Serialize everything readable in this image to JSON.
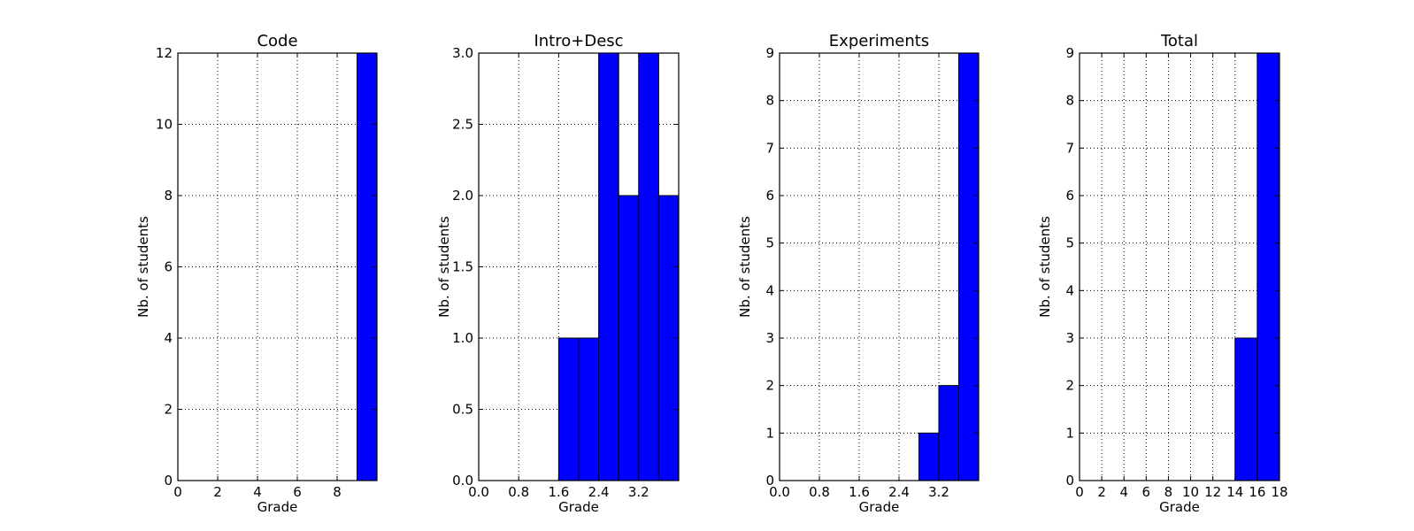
{
  "chart_data": [
    {
      "type": "bar",
      "title": "Code",
      "xlabel": "Grade",
      "ylabel": "Nb. of students",
      "xlim": [
        0,
        10
      ],
      "ylim": [
        0,
        12
      ],
      "xticks": [
        "0",
        "2",
        "4",
        "6",
        "8"
      ],
      "xtick_values": [
        0,
        2,
        4,
        6,
        8
      ],
      "yticks": [
        "0",
        "2",
        "4",
        "6",
        "8",
        "10",
        "12"
      ],
      "ytick_values": [
        0,
        2,
        4,
        6,
        8,
        10,
        12
      ],
      "grid": true,
      "bar_color": "#0000ff",
      "bins": [
        [
          9,
          10
        ]
      ],
      "values": [
        12
      ]
    },
    {
      "type": "bar",
      "title": "Intro+Desc",
      "xlabel": "Grade",
      "ylabel": "Nb. of students",
      "xlim": [
        0,
        4
      ],
      "ylim": [
        0,
        3
      ],
      "xticks": [
        "0.0",
        "0.8",
        "1.6",
        "2.4",
        "3.2"
      ],
      "xtick_values": [
        0,
        0.8,
        1.6,
        2.4,
        3.2
      ],
      "yticks": [
        "0.0",
        "0.5",
        "1.0",
        "1.5",
        "2.0",
        "2.5",
        "3.0"
      ],
      "ytick_values": [
        0,
        0.5,
        1,
        1.5,
        2,
        2.5,
        3
      ],
      "grid": true,
      "bar_color": "#0000ff",
      "bins": [
        [
          1.6,
          2.0
        ],
        [
          2.0,
          2.4
        ],
        [
          2.4,
          2.8
        ],
        [
          2.8,
          3.2
        ],
        [
          3.2,
          3.6
        ],
        [
          3.6,
          4.0
        ]
      ],
      "values": [
        1,
        1,
        3,
        2,
        3,
        2
      ]
    },
    {
      "type": "bar",
      "title": "Experiments",
      "xlabel": "Grade",
      "ylabel": "Nb. of students",
      "xlim": [
        0,
        4
      ],
      "ylim": [
        0,
        9
      ],
      "xticks": [
        "0.0",
        "0.8",
        "1.6",
        "2.4",
        "3.2"
      ],
      "xtick_values": [
        0,
        0.8,
        1.6,
        2.4,
        3.2
      ],
      "yticks": [
        "0",
        "1",
        "2",
        "3",
        "4",
        "5",
        "6",
        "7",
        "8",
        "9"
      ],
      "ytick_values": [
        0,
        1,
        2,
        3,
        4,
        5,
        6,
        7,
        8,
        9
      ],
      "grid": true,
      "bar_color": "#0000ff",
      "bins": [
        [
          2.8,
          3.2
        ],
        [
          3.2,
          3.6
        ],
        [
          3.6,
          4.0
        ]
      ],
      "values": [
        1,
        2,
        9
      ]
    },
    {
      "type": "bar",
      "title": "Total",
      "xlabel": "Grade",
      "ylabel": "Nb. of students",
      "xlim": [
        0,
        18
      ],
      "ylim": [
        0,
        9
      ],
      "xticks": [
        "0",
        "2",
        "4",
        "6",
        "8",
        "10",
        "12",
        "14",
        "16",
        "18"
      ],
      "xtick_values": [
        0,
        2,
        4,
        6,
        8,
        10,
        12,
        14,
        16,
        18
      ],
      "yticks": [
        "0",
        "1",
        "2",
        "3",
        "4",
        "5",
        "6",
        "7",
        "8",
        "9"
      ],
      "ytick_values": [
        0,
        1,
        2,
        3,
        4,
        5,
        6,
        7,
        8,
        9
      ],
      "grid": true,
      "bar_color": "#0000ff",
      "bins": [
        [
          14,
          16
        ],
        [
          16,
          18
        ]
      ],
      "values": [
        3,
        9
      ]
    }
  ]
}
